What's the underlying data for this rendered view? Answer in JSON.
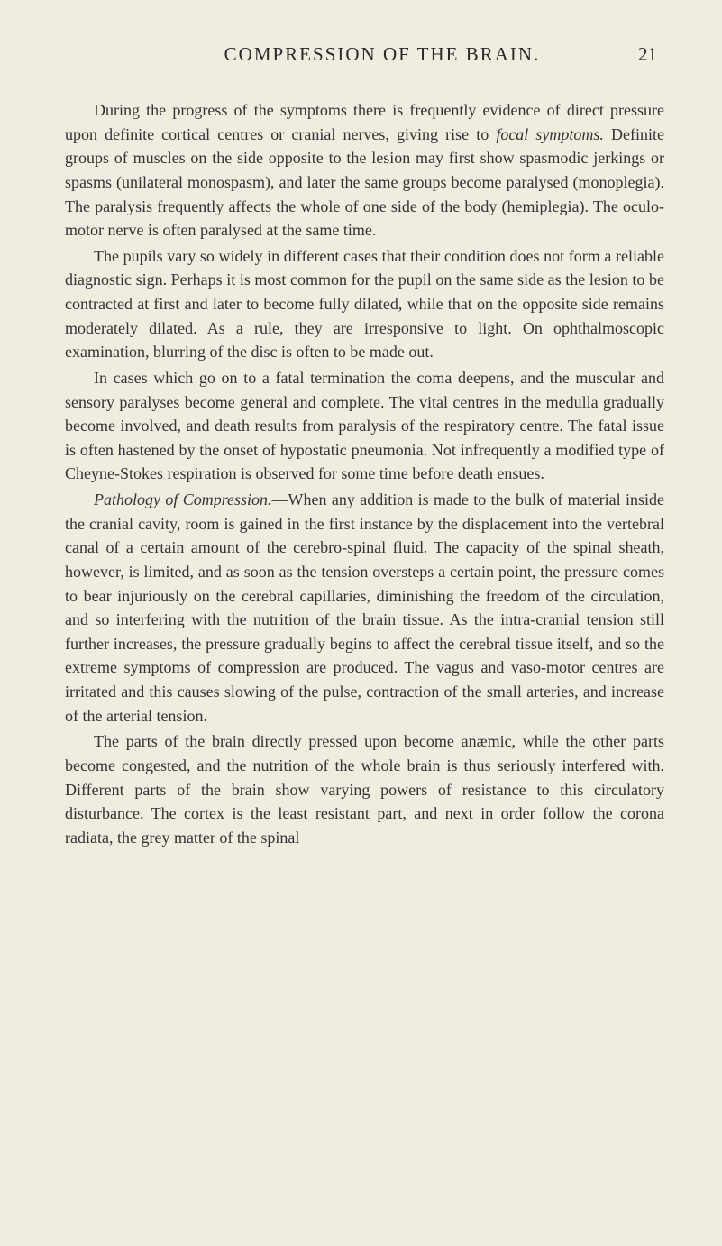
{
  "header": {
    "title": "COMPRESSION OF THE BRAIN.",
    "pageNumber": "21"
  },
  "paragraphs": {
    "p1": {
      "text": "During the progress of the symptoms there is frequently evidence of direct pressure upon definite cortical centres or cranial nerves, giving rise to ",
      "italic1": "focal symptoms.",
      "text2": " Definite groups of muscles on the side opposite to the lesion may first show spasmodic jerkings or spasms (unilateral monospasm), and later the same groups become paralysed (monoplegia). The paralysis frequently affects the whole of one side of the body (hemiplegia). The oculo-motor nerve is often paralysed at the same time."
    },
    "p2": "The pupils vary so widely in different cases that their condition does not form a reliable diagnostic sign. Perhaps it is most common for the pupil on the same side as the lesion to be contracted at first and later to become fully dilated, while that on the opposite side remains moderately dilated. As a rule, they are irresponsive to light. On ophthalmoscopic examination, blurring of the disc is often to be made out.",
    "p3": "In cases which go on to a fatal termination the coma deepens, and the muscular and sensory paralyses become general and complete. The vital centres in the medulla gradually become involved, and death results from paralysis of the respiratory centre. The fatal issue is often hastened by the onset of hypostatic pneumonia. Not infrequently a modified type of Cheyne-Stokes respiration is observed for some time before death ensues.",
    "p4": {
      "italic1": "Pathology of Compression.",
      "text": "—When any addition is made to the bulk of material inside the cranial cavity, room is gained in the first instance by the displacement into the vertebral canal of a certain amount of the cerebro-spinal fluid. The capacity of the spinal sheath, however, is limited, and as soon as the tension oversteps a certain point, the pressure comes to bear injuriously on the cerebral capillaries, diminishing the freedom of the circulation, and so interfering with the nutrition of the brain tissue. As the intra-cranial tension still further increases, the pressure gradually begins to affect the cerebral tissue itself, and so the extreme symptoms of compression are produced. The vagus and vaso-motor centres are irritated and this causes slowing of the pulse, contraction of the small arteries, and increase of the arterial tension."
    },
    "p5": "The parts of the brain directly pressed upon become anæmic, while the other parts become congested, and the nutrition of the whole brain is thus seriously interfered with. Different parts of the brain show varying powers of resistance to this circulatory disturbance. The cortex is the least resistant part, and next in order follow the corona radiata, the grey matter of the spinal"
  },
  "styles": {
    "backgroundColor": "#f0ece0",
    "textColor": "#2a2a2a",
    "bodyFontSize": 18,
    "headerFontSize": 21,
    "lineHeight": 1.48,
    "textIndent": 32
  }
}
